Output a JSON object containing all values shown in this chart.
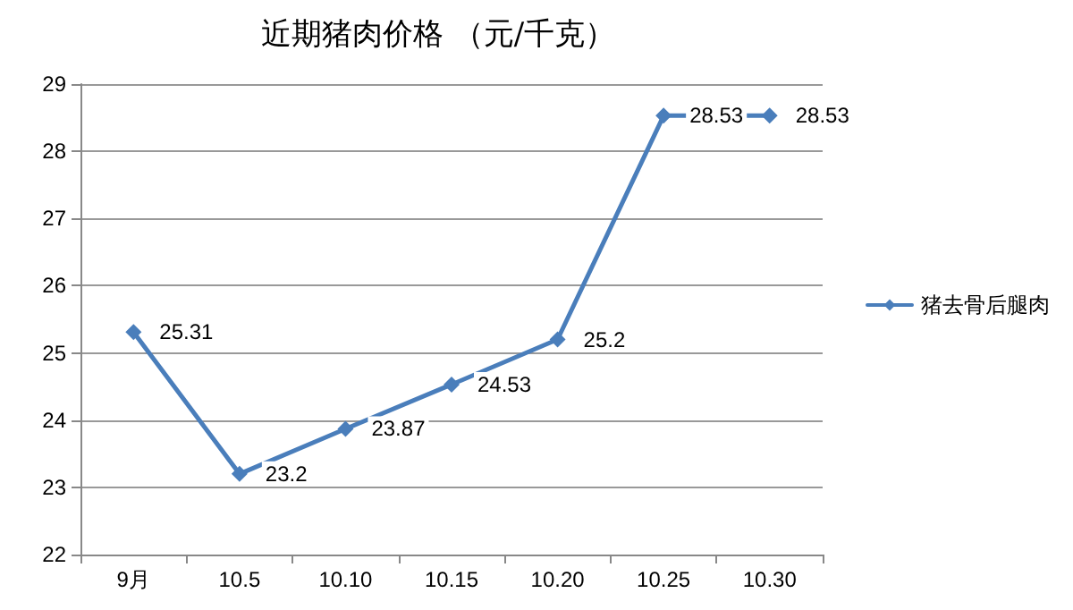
{
  "chart_data": {
    "type": "line",
    "title": "近期猪肉价格 （元/千克）",
    "categories": [
      "9月",
      "10.5",
      "10.10",
      "10.15",
      "10.20",
      "10.25",
      "10.30"
    ],
    "series": [
      {
        "name": "猪去骨后腿肉",
        "color": "#4a7ebb",
        "values": [
          25.31,
          23.2,
          23.87,
          24.53,
          25.2,
          28.53,
          28.53
        ]
      }
    ],
    "ylim": [
      22,
      29
    ],
    "yticks": [
      22,
      23,
      24,
      25,
      26,
      27,
      28,
      29
    ],
    "grid": "y",
    "legend": "right",
    "marker": "diamond",
    "line_style": "solid",
    "data_labels": true
  }
}
